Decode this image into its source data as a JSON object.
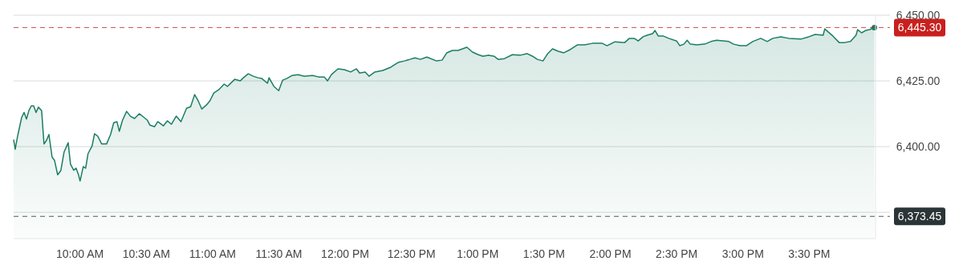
{
  "chart_data": {
    "type": "area",
    "xlim": [
      9.5,
      16
    ],
    "xticks": [
      {
        "value": 10,
        "label": "10:00 AM"
      },
      {
        "value": 10.5,
        "label": "10:30 AM"
      },
      {
        "value": 11,
        "label": "11:00 AM"
      },
      {
        "value": 11.5,
        "label": "11:30 AM"
      },
      {
        "value": 12,
        "label": "12:00 PM"
      },
      {
        "value": 12.5,
        "label": "12:30 PM"
      },
      {
        "value": 13,
        "label": "1:00 PM"
      },
      {
        "value": 13.5,
        "label": "1:30 PM"
      },
      {
        "value": 14,
        "label": "2:00 PM"
      },
      {
        "value": 14.5,
        "label": "2:30 PM"
      },
      {
        "value": 15,
        "label": "3:00 PM"
      },
      {
        "value": 15.5,
        "label": "3:30 PM"
      }
    ],
    "ylim": [
      6365,
      6450
    ],
    "yticks": [
      {
        "value": 6375,
        "label": null
      },
      {
        "value": 6400,
        "label": "6,400.00"
      },
      {
        "value": 6425,
        "label": "6,425.00"
      },
      {
        "value": 6450,
        "label": "6,450.00"
      }
    ],
    "grid": "y",
    "ref_lines": [
      {
        "axis": "y",
        "value": 6445.3,
        "label": "6,445.30",
        "color": "#c8201e",
        "line_style": "dashed"
      },
      {
        "axis": "y",
        "value": 6373.45,
        "label": "6,373.45",
        "color": "#2b3436",
        "line_style": "dashed"
      }
    ],
    "series": [
      {
        "color": "#1b7d62",
        "x": [
          9.5,
          9.512,
          9.53,
          9.56,
          9.579,
          9.597,
          9.615,
          9.633,
          9.651,
          9.669,
          9.687,
          9.711,
          9.729,
          9.748,
          9.766,
          9.79,
          9.808,
          9.832,
          9.856,
          9.88,
          9.911,
          9.929,
          9.953,
          9.971,
          9.989,
          10.001,
          10.025,
          10.043,
          10.061,
          10.092,
          10.11,
          10.134,
          10.164,
          10.201,
          10.231,
          10.255,
          10.279,
          10.297,
          10.321,
          10.352,
          10.382,
          10.412,
          10.448,
          10.478,
          10.509,
          10.527,
          10.563,
          10.587,
          10.629,
          10.659,
          10.69,
          10.726,
          10.762,
          10.804,
          10.835,
          10.865,
          10.889,
          10.919,
          10.955,
          10.98,
          11.01,
          11.046,
          11.088,
          11.112,
          11.167,
          11.209,
          11.233,
          11.269,
          11.306,
          11.342,
          11.372,
          11.414,
          11.426,
          11.463,
          11.499,
          11.529,
          11.559,
          11.602,
          11.644,
          11.692,
          11.753,
          11.801,
          11.843,
          11.867,
          11.897,
          11.946,
          11.994,
          12.042,
          12.085,
          12.109,
          12.151,
          12.181,
          12.224,
          12.284,
          12.344,
          12.399,
          12.447,
          12.489,
          12.526,
          12.568,
          12.616,
          12.689,
          12.731,
          12.767,
          12.809,
          12.852,
          12.918,
          12.96,
          13.003,
          13.039,
          13.081,
          13.123,
          13.154,
          13.202,
          13.262,
          13.323,
          13.371,
          13.413,
          13.449,
          13.492,
          13.528,
          13.564,
          13.606,
          13.649,
          13.697,
          13.751,
          13.806,
          13.866,
          13.939,
          13.975,
          14.035,
          14.108,
          14.144,
          14.18,
          14.21,
          14.247,
          14.277,
          14.319,
          14.337,
          14.361,
          14.398,
          14.44,
          14.5,
          14.524,
          14.555,
          14.579,
          14.603,
          14.651,
          14.712,
          14.76,
          14.802,
          14.893,
          14.929,
          14.977,
          15.026,
          15.074,
          15.134,
          15.183,
          15.225,
          15.285,
          15.346,
          15.436,
          15.497,
          15.545,
          15.605,
          15.617,
          15.678,
          15.726,
          15.768,
          15.811,
          15.853,
          15.865,
          15.895,
          15.925,
          15.955,
          15.991
        ],
        "values": [
          6402.7,
          6399,
          6404,
          6411,
          6413,
          6410.5,
          6413.7,
          6415.5,
          6415.5,
          6413,
          6415,
          6413.7,
          6401,
          6402.4,
          6404.6,
          6396,
          6394.8,
          6389.3,
          6390.9,
          6397.9,
          6401.5,
          6393.3,
          6391,
          6391.8,
          6389.3,
          6386.9,
          6392.4,
          6391.8,
          6397.3,
          6400.3,
          6404.9,
          6404,
          6401,
          6401,
          6404.6,
          6409.1,
          6409.5,
          6405.8,
          6410,
          6413.4,
          6411.5,
          6410.7,
          6412.5,
          6411.3,
          6410,
          6408.2,
          6407.6,
          6409.5,
          6407.9,
          6409.8,
          6408.5,
          6411.6,
          6409.5,
          6414.6,
          6415.2,
          6419.8,
          6417.7,
          6414.3,
          6415.9,
          6417.4,
          6420.4,
          6421.6,
          6423.8,
          6422.9,
          6425.6,
          6425,
          6426.2,
          6427.7,
          6426.8,
          6426.2,
          6425.9,
          6424.1,
          6426.2,
          6422.9,
          6421.3,
          6425.3,
          6425.9,
          6427.1,
          6427.4,
          6426.8,
          6427.1,
          6426.5,
          6426.5,
          6425,
          6427.4,
          6429.6,
          6429.3,
          6428.4,
          6429.6,
          6428,
          6428.4,
          6426.8,
          6428.4,
          6429,
          6430.2,
          6432,
          6432.6,
          6433.2,
          6433.8,
          6433.2,
          6434.1,
          6432.6,
          6432.9,
          6435.7,
          6436.6,
          6436.6,
          6437.8,
          6436,
          6435,
          6434.4,
          6434.8,
          6434.4,
          6433.2,
          6433.5,
          6435,
          6434.8,
          6435.4,
          6434.4,
          6433.2,
          6432.6,
          6435.4,
          6437.2,
          6436.3,
          6435.7,
          6436.9,
          6438.7,
          6438.7,
          6439.3,
          6439.3,
          6438.4,
          6439.9,
          6439.6,
          6441.2,
          6441.2,
          6440.2,
          6441.8,
          6442.4,
          6443,
          6444.2,
          6442.1,
          6442.1,
          6441.2,
          6440.2,
          6438.4,
          6439,
          6440.5,
          6439,
          6438.7,
          6439,
          6440,
          6440.5,
          6440,
          6439,
          6438.4,
          6438.4,
          6440,
          6441.2,
          6440,
          6441.2,
          6441.8,
          6441.2,
          6440.9,
          6441.8,
          6442.7,
          6442.4,
          6444.8,
          6442.1,
          6439.6,
          6439.6,
          6440,
          6442.4,
          6444.5,
          6443.3,
          6444.2,
          6444.5,
          6445.3
        ]
      }
    ]
  }
}
